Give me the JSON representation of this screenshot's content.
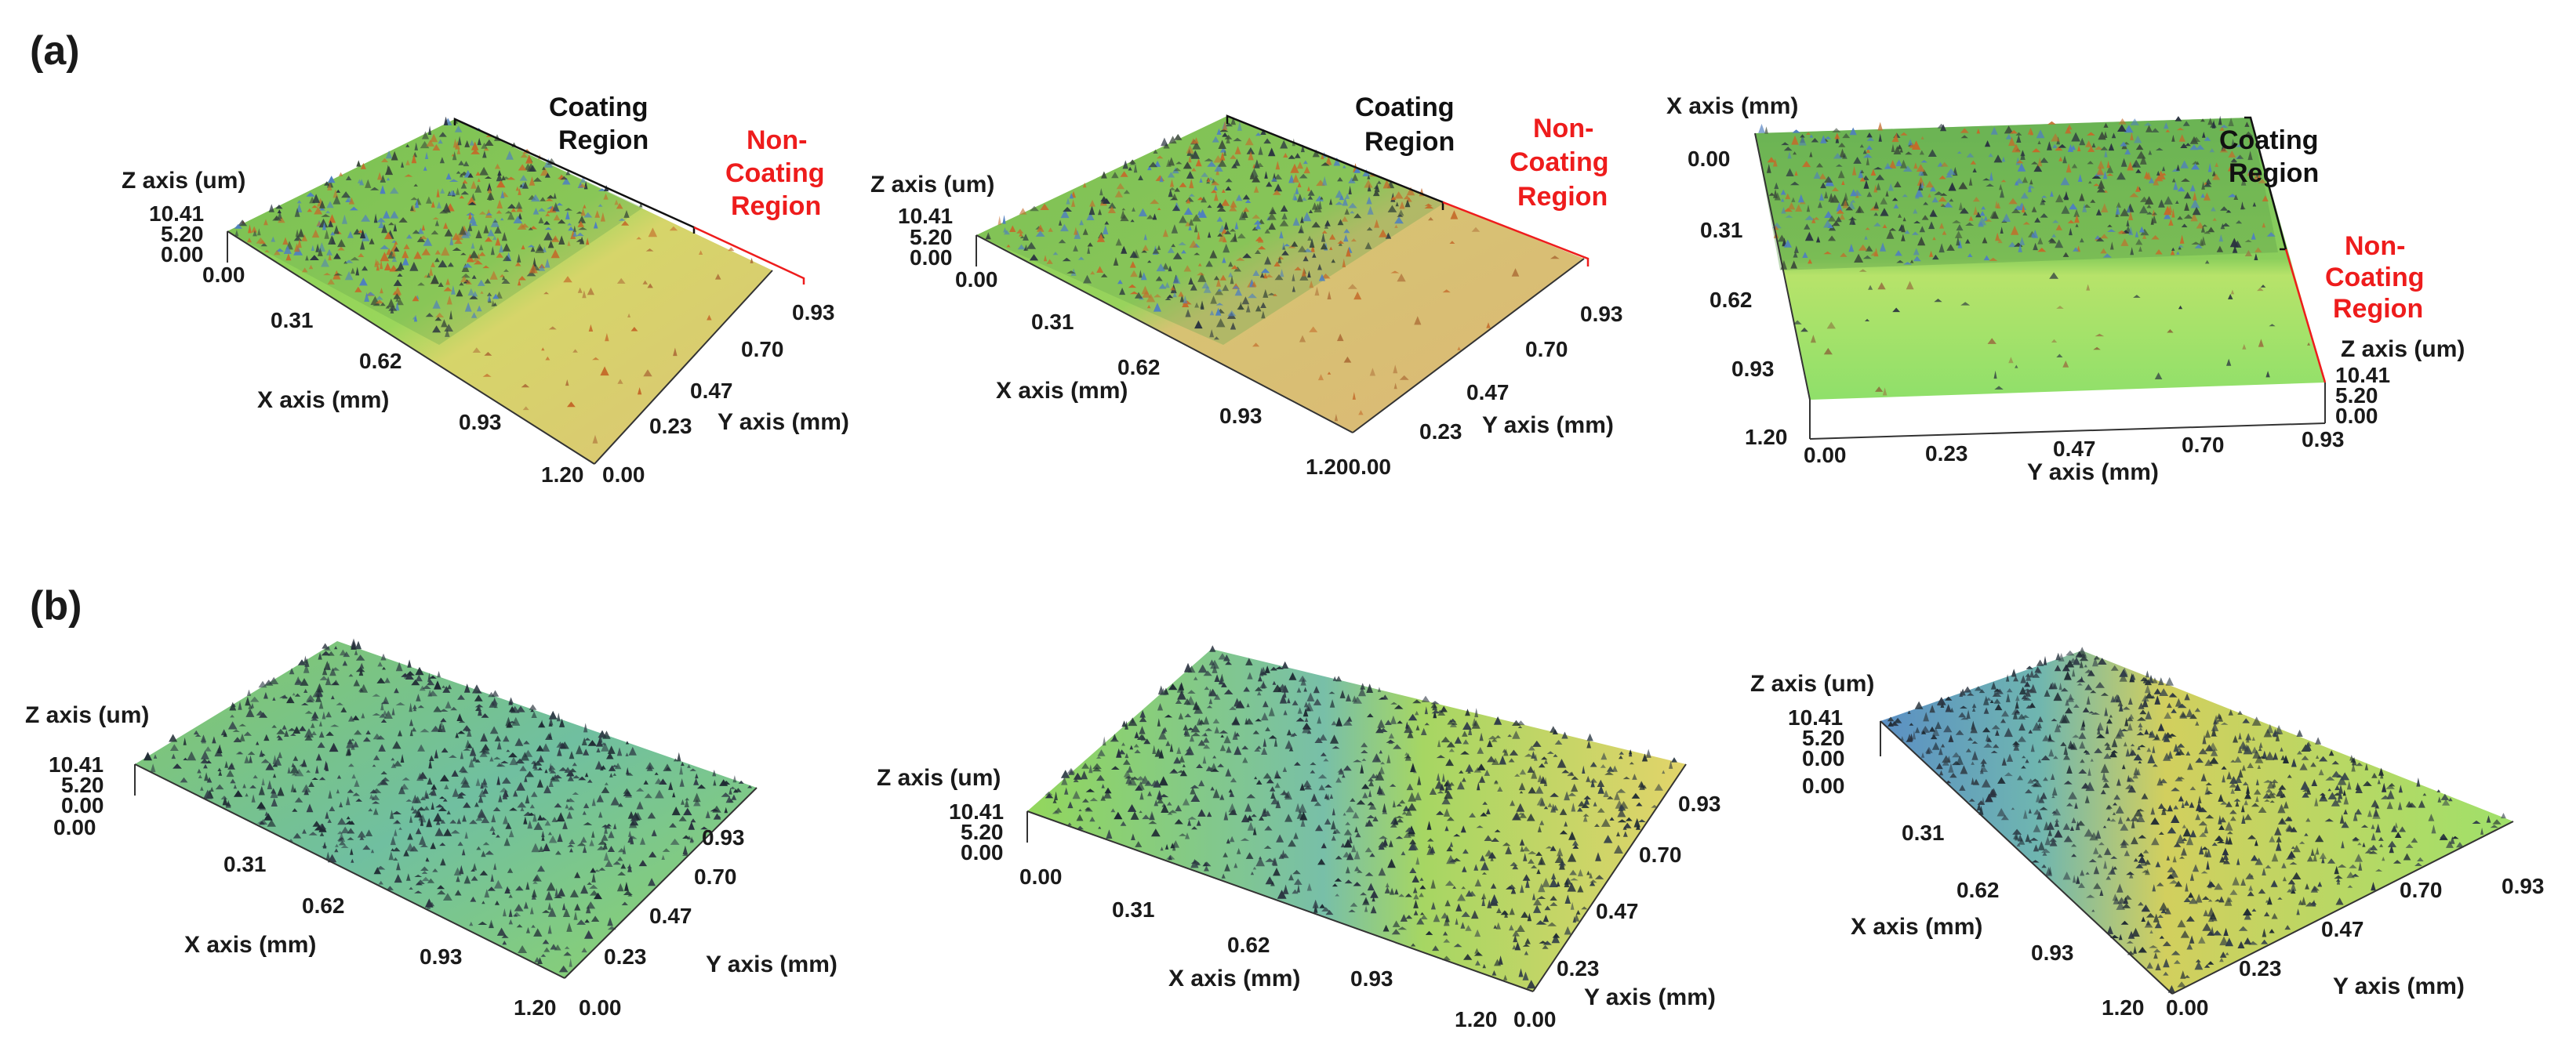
{
  "panel_labels": {
    "a": "(a)",
    "b": "(b)"
  },
  "axis_titles": {
    "x": "X axis (mm)",
    "y": "Y axis (mm)",
    "z": "Z axis (um)"
  },
  "ticks": {
    "x": [
      "0.00",
      "0.31",
      "0.62",
      "0.93",
      "1.20"
    ],
    "y": [
      "0.00",
      "0.23",
      "0.47",
      "0.70",
      "0.93"
    ],
    "z": [
      "10.41",
      "5.20",
      "0.00"
    ],
    "corner_x_end_y_start": "1.200.00"
  },
  "annotations": {
    "coating_line1": "Coating",
    "coating_line2": "Region",
    "noncoating_line1": "Non-",
    "noncoating_line2": "Coating",
    "noncoating_line3": "Region"
  },
  "colors": {
    "coated_green": "#8fd45a",
    "uncoated_yellow": "#d8d86a",
    "uncoated_orange": "#d9b56a",
    "bright_green": "#a8ea6a",
    "blue": "#4f7fbf",
    "dark_peak": "#2a3340",
    "orange_peak": "#c46a2a",
    "red_annotation": "#ee1c1c"
  }
}
